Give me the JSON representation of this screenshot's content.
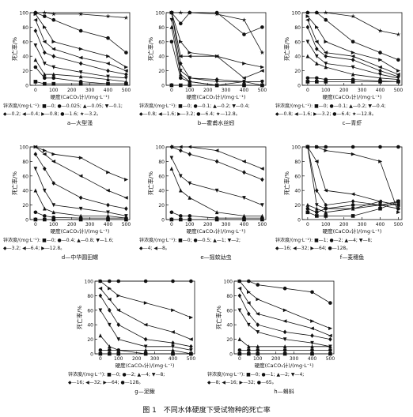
{
  "figure_caption": "图 1　不同水体硬度下受试物种的死亡率",
  "axis_text": {
    "ylabel": "死亡率/%",
    "xlabel": "硬度(CaCO₃计)/(mg·L⁻¹)",
    "yticks": [
      "0",
      "20",
      "40",
      "60",
      "80",
      "100"
    ],
    "xticks": [
      "0",
      "100",
      "200",
      "300",
      "400",
      "500"
    ]
  },
  "chart_data": [
    {
      "id": "a",
      "type": "line",
      "caption": "a—大型溞",
      "legend": [
        "锌浓度/(mg·L⁻¹): ■—0; ●—0.025; ▲—0.05; ▼—0.1;",
        "◆—0.2; ◀—0.4; ▶—0.8; ●—1.6; ★—3.2。"
      ],
      "x": [
        0,
        50,
        100,
        250,
        400,
        500
      ],
      "ylim": [
        0,
        100
      ],
      "series": [
        {
          "marker": "square",
          "values": [
            5,
            2,
            2,
            2,
            2,
            2
          ]
        },
        {
          "marker": "circle",
          "values": [
            25,
            10,
            10,
            5,
            2,
            2
          ]
        },
        {
          "marker": "triangle",
          "values": [
            35,
            15,
            15,
            12,
            8,
            5
          ]
        },
        {
          "marker": "tri-down",
          "values": [
            55,
            30,
            25,
            18,
            12,
            10
          ]
        },
        {
          "marker": "diamond",
          "values": [
            75,
            45,
            40,
            30,
            20,
            15
          ]
        },
        {
          "marker": "tri-left",
          "values": [
            90,
            60,
            50,
            38,
            30,
            20
          ]
        },
        {
          "marker": "tri-right",
          "values": [
            98,
            80,
            60,
            50,
            40,
            25
          ]
        },
        {
          "marker": "circle",
          "values": [
            100,
            95,
            90,
            75,
            65,
            45
          ]
        },
        {
          "marker": "star",
          "values": [
            100,
            100,
            98,
            98,
            95,
            93
          ]
        }
      ]
    },
    {
      "id": "b",
      "type": "line",
      "caption": "b—霍甫水丝蚓",
      "legend": [
        "锌浓度/(mg·L⁻¹): ■—0; ●—0.1; ▲—0.2; ▼—0.4;",
        "◆—0.8; ◀—1.6; ▶—3.2; ●—6.4; ★—12.8。"
      ],
      "x": [
        0,
        50,
        100,
        250,
        400,
        500
      ],
      "ylim": [
        0,
        100
      ],
      "series": [
        {
          "marker": "square",
          "values": [
            0,
            0,
            0,
            0,
            0,
            0
          ]
        },
        {
          "marker": "circle",
          "values": [
            60,
            10,
            5,
            0,
            0,
            0
          ]
        },
        {
          "marker": "triangle",
          "values": [
            80,
            15,
            5,
            0,
            5,
            0
          ]
        },
        {
          "marker": "tri-down",
          "values": [
            90,
            20,
            10,
            5,
            5,
            5
          ]
        },
        {
          "marker": "diamond",
          "values": [
            100,
            30,
            10,
            8,
            5,
            5
          ]
        },
        {
          "marker": "tri-left",
          "values": [
            100,
            40,
            40,
            40,
            10,
            20
          ]
        },
        {
          "marker": "tri-right",
          "values": [
            100,
            60,
            45,
            40,
            30,
            25
          ]
        },
        {
          "marker": "circle",
          "values": [
            100,
            85,
            100,
            100,
            70,
            80
          ]
        },
        {
          "marker": "star",
          "values": [
            100,
            100,
            100,
            98,
            90,
            45
          ]
        }
      ]
    },
    {
      "id": "c",
      "type": "line",
      "caption": "c—青虾",
      "legend": [
        "锌浓度/(mg·L⁻¹): ■—0; ●—0.1; ▲—0.2; ▼—0.4;",
        "◆—0.8; ◀—1.6; ▶—3.2; ●—6.4; ★—12.8。"
      ],
      "x": [
        0,
        50,
        100,
        250,
        400,
        500
      ],
      "ylim": [
        0,
        100
      ],
      "series": [
        {
          "marker": "square",
          "values": [
            5,
            5,
            5,
            5,
            5,
            5
          ]
        },
        {
          "marker": "circle",
          "values": [
            10,
            10,
            8,
            8,
            6,
            5
          ]
        },
        {
          "marker": "triangle",
          "values": [
            40,
            30,
            25,
            15,
            10,
            8
          ]
        },
        {
          "marker": "tri-down",
          "values": [
            60,
            40,
            30,
            25,
            15,
            10
          ]
        },
        {
          "marker": "diamond",
          "values": [
            80,
            50,
            40,
            35,
            20,
            12
          ]
        },
        {
          "marker": "tri-left",
          "values": [
            90,
            60,
            45,
            40,
            25,
            15
          ]
        },
        {
          "marker": "tri-right",
          "values": [
            95,
            80,
            60,
            45,
            35,
            20
          ]
        },
        {
          "marker": "circle",
          "values": [
            100,
            100,
            90,
            60,
            45,
            35
          ]
        },
        {
          "marker": "star",
          "values": [
            100,
            100,
            100,
            95,
            75,
            70
          ]
        }
      ]
    },
    {
      "id": "d",
      "type": "line",
      "caption": "d—中华圆田螺",
      "legend": [
        "锌浓度/(mg·L⁻¹): ■—0; ●—0.4; ▲—0.8; ▼—1.6;",
        "◆—3.2; ◀—6.4; ▶—12.8。"
      ],
      "x": [
        0,
        50,
        100,
        250,
        400,
        500
      ],
      "ylim": [
        0,
        100
      ],
      "series": [
        {
          "marker": "square",
          "values": [
            0,
            0,
            0,
            0,
            0,
            0
          ]
        },
        {
          "marker": "circle",
          "values": [
            10,
            5,
            3,
            2,
            2,
            2
          ]
        },
        {
          "marker": "triangle",
          "values": [
            40,
            15,
            10,
            5,
            5,
            2
          ]
        },
        {
          "marker": "tri-down",
          "values": [
            70,
            40,
            20,
            15,
            10,
            5
          ]
        },
        {
          "marker": "diamond",
          "values": [
            90,
            70,
            50,
            30,
            20,
            15
          ]
        },
        {
          "marker": "tri-left",
          "values": [
            100,
            90,
            80,
            60,
            40,
            30
          ]
        },
        {
          "marker": "tri-right",
          "values": [
            100,
            95,
            90,
            85,
            65,
            55
          ]
        }
      ]
    },
    {
      "id": "e",
      "type": "line",
      "caption": "e—摇蚊幼虫",
      "legend": [
        "锌浓度/(mg·L⁻¹): ■—0; ●—0.5; ▲—1; ▼—2;",
        "◆—4; ◀—8。"
      ],
      "x": [
        0,
        50,
        100,
        250,
        400,
        500
      ],
      "ylim": [
        0,
        100
      ],
      "series": [
        {
          "marker": "square",
          "values": [
            0,
            0,
            0,
            0,
            0,
            0
          ]
        },
        {
          "marker": "circle",
          "values": [
            10,
            5,
            5,
            2,
            2,
            2
          ]
        },
        {
          "marker": "triangle",
          "values": [
            70,
            40,
            30,
            10,
            5,
            5
          ]
        },
        {
          "marker": "tri-down",
          "values": [
            85,
            60,
            50,
            40,
            30,
            20
          ]
        },
        {
          "marker": "diamond",
          "values": [
            100,
            95,
            90,
            80,
            65,
            55
          ]
        },
        {
          "marker": "tri-left",
          "values": [
            100,
            100,
            100,
            95,
            80,
            70
          ]
        }
      ]
    },
    {
      "id": "f",
      "type": "line",
      "caption": "f—麦穗鱼",
      "legend": [
        "锌浓度/(mg·L⁻¹): ■—1; ●—2; ▲—4; ▼—8;",
        "◆—16; ◀—32; ▶—64; ●—128。"
      ],
      "x": [
        0,
        50,
        100,
        250,
        400,
        500
      ],
      "ylim": [
        0,
        100
      ],
      "series": [
        {
          "marker": "square",
          "values": [
            10,
            5,
            5,
            5,
            15,
            25
          ]
        },
        {
          "marker": "circle",
          "values": [
            15,
            10,
            15,
            20,
            20,
            15
          ]
        },
        {
          "marker": "triangle",
          "values": [
            20,
            15,
            10,
            15,
            25,
            20
          ]
        },
        {
          "marker": "tri-down",
          "values": [
            100,
            20,
            15,
            15,
            20,
            20
          ]
        },
        {
          "marker": "diamond",
          "values": [
            100,
            40,
            20,
            25,
            20,
            25
          ]
        },
        {
          "marker": "tri-left",
          "values": [
            100,
            80,
            40,
            35,
            25,
            20
          ]
        },
        {
          "marker": "tri-right",
          "values": [
            100,
            100,
            95,
            90,
            80,
            10
          ]
        },
        {
          "marker": "circle",
          "values": [
            100,
            100,
            100,
            100,
            100,
            100
          ]
        }
      ]
    },
    {
      "id": "g",
      "type": "line",
      "caption": "g—泥鳅",
      "legend": [
        "锌浓度/(mg·L⁻¹): ■—0; ●—2; ▲—4; ▼—8;",
        "◆—16; ◀—32; ▶—64; ●—128。"
      ],
      "x": [
        0,
        50,
        100,
        250,
        400,
        500
      ],
      "ylim": [
        0,
        100
      ],
      "series": [
        {
          "marker": "square",
          "values": [
            0,
            0,
            0,
            0,
            0,
            0
          ]
        },
        {
          "marker": "circle",
          "values": [
            5,
            5,
            5,
            0,
            0,
            0
          ]
        },
        {
          "marker": "triangle",
          "values": [
            25,
            10,
            5,
            5,
            5,
            0
          ]
        },
        {
          "marker": "tri-down",
          "values": [
            60,
            40,
            20,
            10,
            10,
            5
          ]
        },
        {
          "marker": "diamond",
          "values": [
            80,
            60,
            40,
            20,
            15,
            10
          ]
        },
        {
          "marker": "tri-left",
          "values": [
            90,
            75,
            60,
            40,
            30,
            20
          ]
        },
        {
          "marker": "tri-right",
          "values": [
            100,
            90,
            80,
            70,
            60,
            50
          ]
        },
        {
          "marker": "circle",
          "values": [
            100,
            100,
            100,
            100,
            100,
            100
          ]
        }
      ]
    },
    {
      "id": "h",
      "type": "line",
      "caption": "h—蝌蚪",
      "legend": [
        "锌浓度/(mg·L⁻¹): ■—0; ●—1; ▲—2; ▼—4;",
        "◆—8; ◀—16; ▶—32; ●—65。"
      ],
      "x": [
        0,
        50,
        100,
        250,
        400,
        500
      ],
      "ylim": [
        0,
        100
      ],
      "series": [
        {
          "marker": "square",
          "values": [
            0,
            0,
            0,
            0,
            0,
            0
          ]
        },
        {
          "marker": "circle",
          "values": [
            5,
            5,
            5,
            5,
            5,
            5
          ]
        },
        {
          "marker": "triangle",
          "values": [
            20,
            10,
            10,
            10,
            10,
            10
          ]
        },
        {
          "marker": "tri-down",
          "values": [
            60,
            40,
            30,
            20,
            15,
            10
          ]
        },
        {
          "marker": "diamond",
          "values": [
            80,
            55,
            40,
            30,
            25,
            20
          ]
        },
        {
          "marker": "tri-left",
          "values": [
            90,
            70,
            55,
            45,
            35,
            25
          ]
        },
        {
          "marker": "tri-right",
          "values": [
            100,
            85,
            75,
            60,
            45,
            35
          ]
        },
        {
          "marker": "circle",
          "values": [
            100,
            100,
            95,
            90,
            85,
            70
          ]
        }
      ]
    }
  ]
}
